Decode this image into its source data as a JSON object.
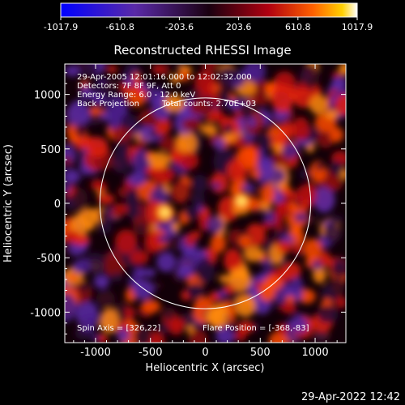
{
  "colorbar": {
    "ticks": [
      "-1017.9",
      "-610.8",
      "-203.6",
      "203.6",
      "610.8",
      "1017.9"
    ],
    "vmin": -1017.9,
    "vmax": 1017.9
  },
  "chart_data": {
    "type": "heatmap",
    "title": "Reconstructed RHESSI Image",
    "xlabel": "Heliocentric X (arcsec)",
    "ylabel": "Heliocentric Y (arcsec)",
    "xlim": [
      -1280,
      1280
    ],
    "ylim": [
      -1280,
      1280
    ],
    "xticks": [
      -1000,
      -500,
      0,
      500,
      1000
    ],
    "yticks": [
      -1000,
      -500,
      0,
      500,
      1000
    ],
    "solar_limb_radius": 960,
    "sources": [
      {
        "x": -368,
        "y": -83
      },
      {
        "x": 330,
        "y": 20
      }
    ],
    "annotations": {
      "time_range": "29-Apr-2005 12:01:16.000 to 12:02:32.000",
      "detectors": "Detectors: 7F 8F 9F, Att 0",
      "energy_range": "Energy Range: 6.0 - 12.0 keV",
      "method": "Back Projection",
      "total_counts": "Total counts: 2.70E+03",
      "spin_axis": "Spin Axis = [326,22]",
      "flare_position": "Flare Position = [-368,-83]"
    }
  },
  "footer": {
    "timestamp": "29-Apr-2022 12:42"
  }
}
